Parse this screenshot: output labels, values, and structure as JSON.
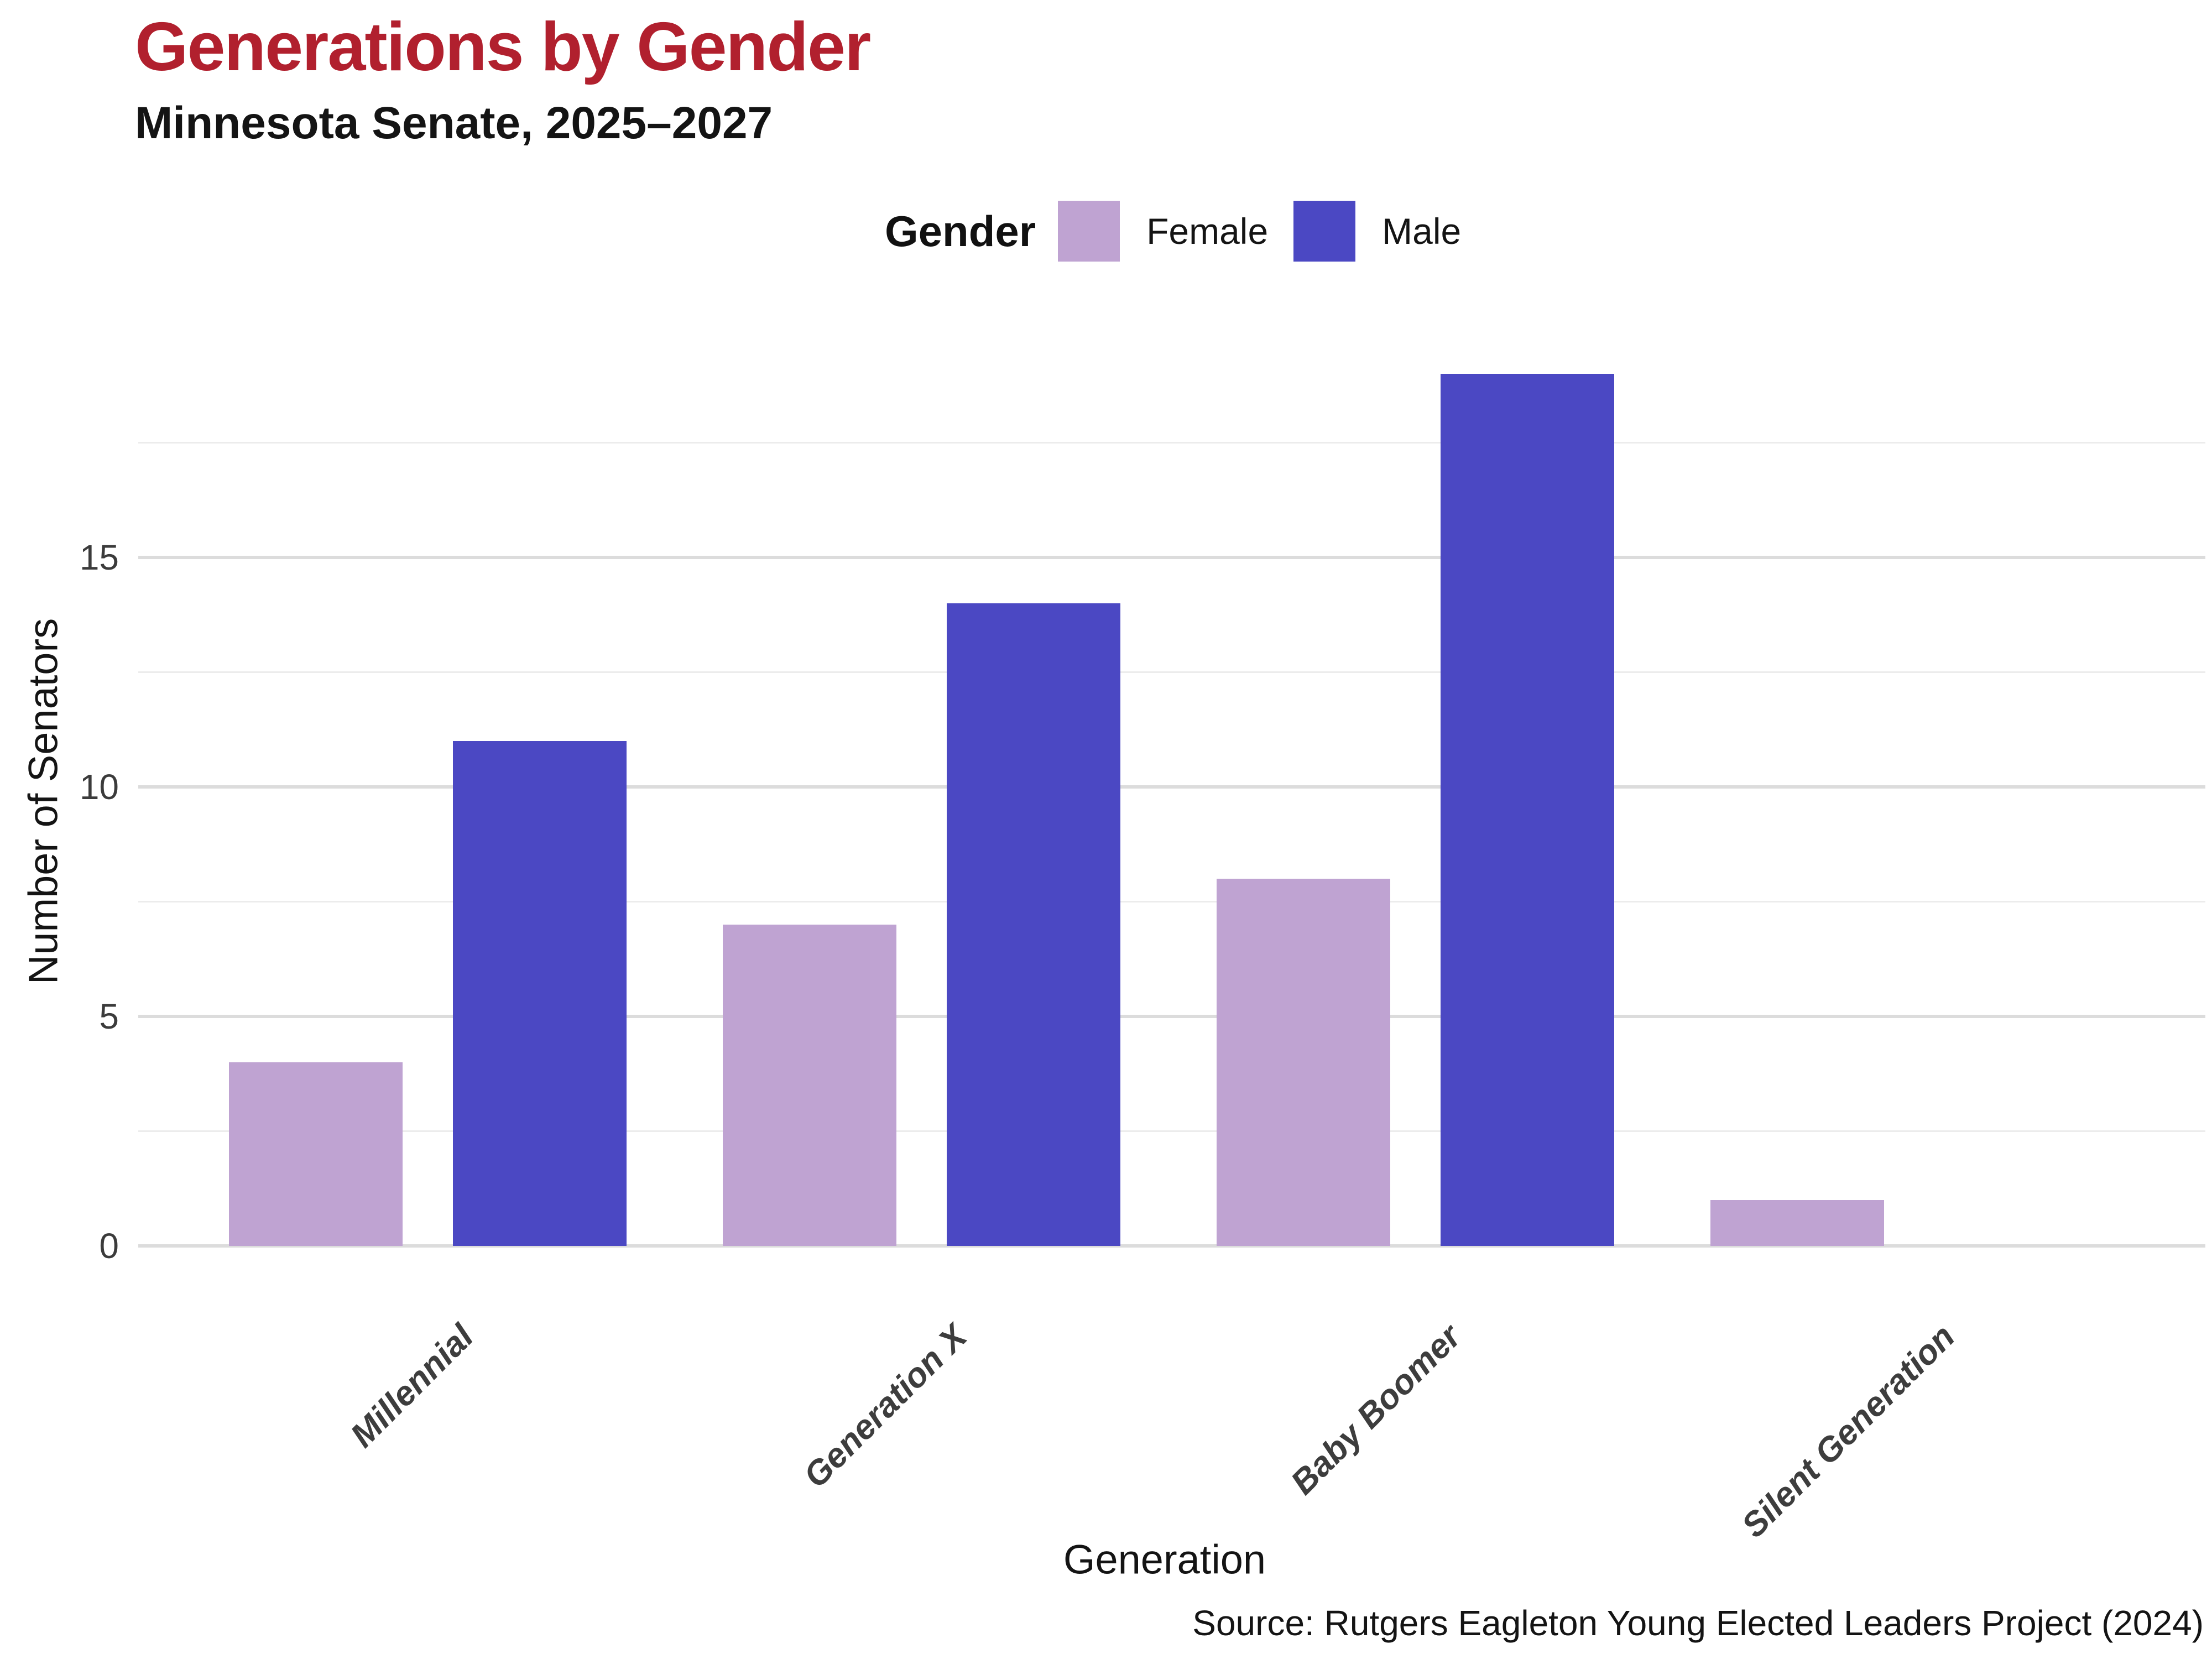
{
  "header": {
    "title": "Generations by Gender",
    "subtitle": "Minnesota Senate, 2025–2027"
  },
  "legend": {
    "title": "Gender",
    "items": [
      {
        "label": "Female",
        "color": "#BFA3D2"
      },
      {
        "label": "Male",
        "color": "#4B48C3"
      }
    ]
  },
  "source": "Source: Rutgers Eagleton Young Elected Leaders Project (2024)",
  "colors": {
    "title_red": "#B1202E",
    "text": "#141414",
    "tick_text": "#3b3b3b",
    "grid_major": "#dcdcdc",
    "grid_minor": "#ececec",
    "female": "#BFA3D2",
    "male": "#4B48C3"
  },
  "chart_data": {
    "type": "bar",
    "bar_layout": "vertical grouped",
    "title": "Generations by Gender",
    "subtitle": "Minnesota Senate, 2025–2027",
    "categories": [
      "Millennial",
      "Generation X",
      "Baby Boomer",
      "Silent Generation"
    ],
    "series": [
      {
        "name": "Female",
        "color": "#BFA3D2",
        "values": [
          4,
          7,
          8,
          1
        ]
      },
      {
        "name": "Male",
        "color": "#4B48C3",
        "values": [
          11,
          14,
          19,
          0
        ]
      }
    ],
    "xlabel": "Generation",
    "ylabel": "Number of Senators",
    "yticks": [
      0,
      5,
      10,
      15
    ],
    "ylim": [
      0,
      20
    ],
    "grid": "horizontal major every 5, minor every 2.5, no vertical grid",
    "legend_position": "top-center"
  }
}
